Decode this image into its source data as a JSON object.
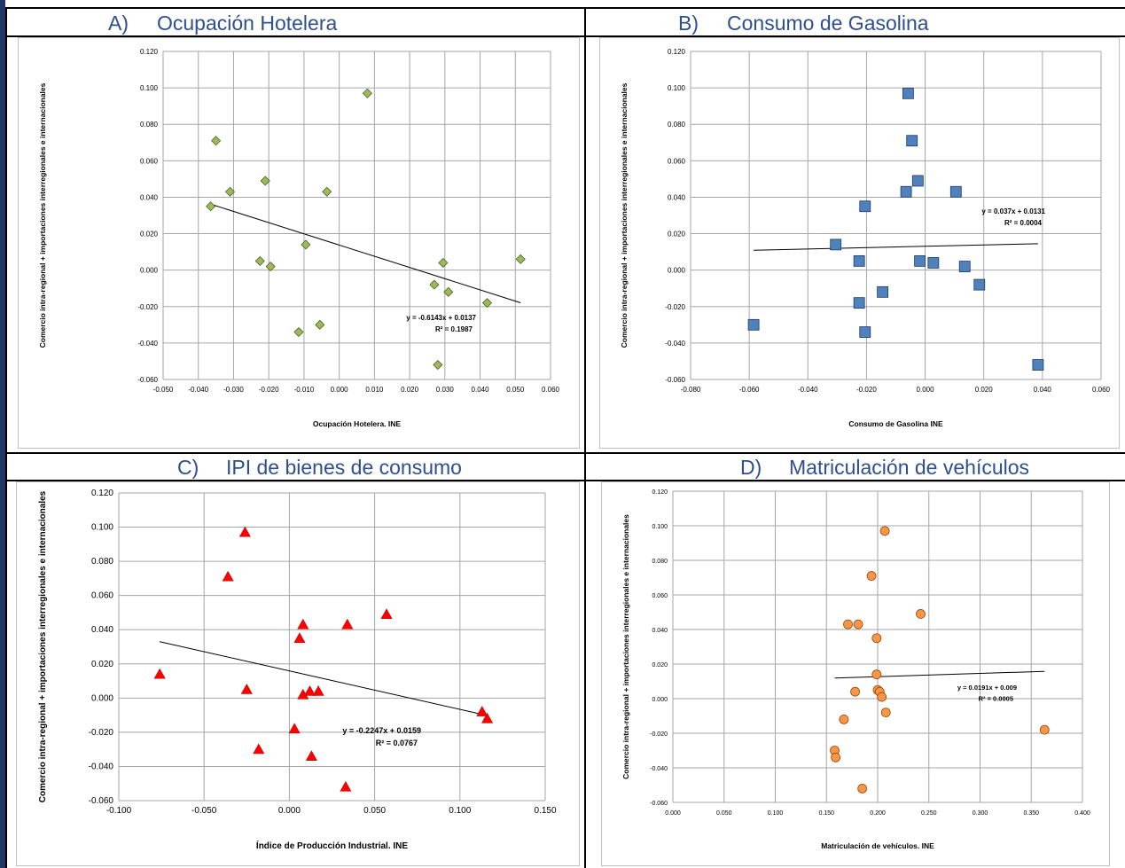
{
  "colors": {
    "title": "#2e4f8f",
    "gridline": "#a6a6a6",
    "trendline": "#000000",
    "left_bar": "#1f3864"
  },
  "panels": [
    {
      "letter": "A)",
      "title": "Ocupación Hotelera"
    },
    {
      "letter": "B)",
      "title": "Consumo de Gasolina"
    },
    {
      "letter": "C)",
      "title": "IPI de bienes de consumo"
    },
    {
      "letter": "D)",
      "title": "Matriculación de vehículos"
    }
  ],
  "chart_data": [
    {
      "type": "scatter",
      "xlabel": "Ocupación Hotelera. INE",
      "ylabel": "Comercio intra-regional + importaciones interregionales e internacionales",
      "xlim": [
        -0.05,
        0.06
      ],
      "ylim": [
        -0.06,
        0.12
      ],
      "x_ticks": [
        "-0.050",
        "-0.040",
        "-0.030",
        "-0.020",
        "-0.010",
        "0.000",
        "0.010",
        "0.020",
        "0.030",
        "0.040",
        "0.050",
        "0.060"
      ],
      "y_ticks": [
        "0.120",
        "0.100",
        "0.080",
        "0.060",
        "0.040",
        "0.020",
        "0.000",
        "-0.020",
        "-0.040",
        "-0.060"
      ],
      "grid": true,
      "marker": "diamond",
      "marker_fill": "#9bbb59",
      "marker_stroke": "#4f6228",
      "points": [
        [
          -0.035,
          0.071
        ],
        [
          -0.0365,
          0.035
        ],
        [
          -0.031,
          0.043
        ],
        [
          -0.021,
          0.049
        ],
        [
          -0.0225,
          0.005
        ],
        [
          -0.0195,
          0.002
        ],
        [
          -0.0095,
          0.014
        ],
        [
          -0.0035,
          0.043
        ],
        [
          0.008,
          0.097
        ],
        [
          -0.0115,
          -0.034
        ],
        [
          -0.0055,
          -0.03
        ],
        [
          0.027,
          -0.008
        ],
        [
          0.0295,
          0.004
        ],
        [
          0.031,
          -0.012
        ],
        [
          0.0515,
          0.006
        ],
        [
          0.042,
          -0.018
        ],
        [
          0.028,
          -0.052
        ]
      ],
      "trendline": {
        "x": [
          -0.0365,
          0.0515
        ],
        "y": [
          0.0362,
          -0.0179
        ]
      },
      "equation": "y = -0.6143x + 0.0137",
      "r2": "R² = 0.1987"
    },
    {
      "type": "scatter",
      "xlabel": "Consumo de Gasolina INE",
      "ylabel": "Comercio intra-regional + importaciones interregionales e internacionales",
      "xlim": [
        -0.08,
        0.06
      ],
      "ylim": [
        -0.06,
        0.12
      ],
      "x_ticks": [
        "-0.080",
        "-0.060",
        "-0.040",
        "-0.020",
        "0.000",
        "0.020",
        "0.040",
        "0.060"
      ],
      "y_ticks": [
        "0.120",
        "0.100",
        "0.080",
        "0.060",
        "0.040",
        "0.020",
        "0.000",
        "-0.020",
        "-0.040",
        "-0.060"
      ],
      "grid": true,
      "marker": "square",
      "marker_fill": "#4f81bd",
      "marker_stroke": "#1f3864",
      "points": [
        [
          -0.0058,
          0.097
        ],
        [
          -0.0045,
          0.071
        ],
        [
          -0.0025,
          0.049
        ],
        [
          -0.0065,
          0.043
        ],
        [
          0.0105,
          0.043
        ],
        [
          -0.0205,
          0.035
        ],
        [
          -0.0305,
          0.014
        ],
        [
          -0.0225,
          0.005
        ],
        [
          -0.0018,
          0.005
        ],
        [
          0.0028,
          0.004
        ],
        [
          0.0135,
          0.002
        ],
        [
          -0.0145,
          -0.012
        ],
        [
          0.0185,
          -0.008
        ],
        [
          -0.0225,
          -0.018
        ],
        [
          -0.0205,
          -0.034
        ],
        [
          -0.0585,
          -0.03
        ],
        [
          0.0385,
          -0.052
        ]
      ],
      "trendline": {
        "x": [
          -0.0585,
          0.0385
        ],
        "y": [
          0.0109,
          0.0145
        ]
      },
      "equation": "y = 0.037x + 0.0131",
      "r2": "R² = 0.0004"
    },
    {
      "type": "scatter",
      "xlabel": "Índice de Producción Industrial. INE",
      "ylabel": "Comercio intra-regional + importaciones interregionales e internacionales",
      "xlim": [
        -0.1,
        0.15
      ],
      "ylim": [
        -0.06,
        0.12
      ],
      "x_ticks": [
        "-0.100",
        "-0.050",
        "0.000",
        "0.050",
        "0.100",
        "0.150"
      ],
      "y_ticks": [
        "0.120",
        "0.100",
        "0.080",
        "0.060",
        "0.040",
        "0.020",
        "0.000",
        "-0.020",
        "-0.040",
        "-0.060"
      ],
      "grid": true,
      "marker": "triangle",
      "marker_fill": "#ff0000",
      "marker_stroke": "#c00000",
      "points": [
        [
          -0.026,
          0.097
        ],
        [
          -0.036,
          0.071
        ],
        [
          0.057,
          0.049
        ],
        [
          0.008,
          0.043
        ],
        [
          0.034,
          0.043
        ],
        [
          0.006,
          0.035
        ],
        [
          -0.076,
          0.014
        ],
        [
          -0.025,
          0.005
        ],
        [
          0.008,
          0.002
        ],
        [
          0.012,
          0.004
        ],
        [
          0.017,
          0.004
        ],
        [
          0.113,
          -0.008
        ],
        [
          0.116,
          -0.012
        ],
        [
          0.003,
          -0.018
        ],
        [
          -0.018,
          -0.03
        ],
        [
          0.013,
          -0.034
        ],
        [
          0.033,
          -0.052
        ]
      ],
      "trendline": {
        "x": [
          -0.076,
          0.116
        ],
        "y": [
          0.033,
          -0.0102
        ]
      },
      "equation": "y = -0.2247x + 0.0159",
      "r2": "R² = 0.0767"
    },
    {
      "type": "scatter",
      "xlabel": "Matriculación de vehículos. INE",
      "ylabel": "Comercio intra-regional + importaciones interregionales e internacionales",
      "xlim": [
        0.0,
        0.4
      ],
      "ylim": [
        -0.06,
        0.12
      ],
      "x_ticks": [
        "0.000",
        "0.050",
        "0.100",
        "0.150",
        "0.200",
        "0.250",
        "0.300",
        "0.350",
        "0.400"
      ],
      "y_ticks": [
        "0.120",
        "0.100",
        "0.080",
        "0.060",
        "0.040",
        "0.020",
        "0.000",
        "-0.020",
        "-0.040",
        "-0.060"
      ],
      "grid": true,
      "marker": "circle",
      "marker_fill": "#f79646",
      "marker_stroke": "#984807",
      "points": [
        [
          0.207,
          0.097
        ],
        [
          0.194,
          0.071
        ],
        [
          0.242,
          0.049
        ],
        [
          0.171,
          0.043
        ],
        [
          0.181,
          0.043
        ],
        [
          0.199,
          0.035
        ],
        [
          0.199,
          0.014
        ],
        [
          0.178,
          0.004
        ],
        [
          0.2,
          0.005
        ],
        [
          0.202,
          0.004
        ],
        [
          0.204,
          0.001
        ],
        [
          0.167,
          -0.012
        ],
        [
          0.208,
          -0.008
        ],
        [
          0.363,
          -0.018
        ],
        [
          0.158,
          -0.03
        ],
        [
          0.159,
          -0.034
        ],
        [
          0.185,
          -0.052
        ]
      ],
      "trendline": {
        "x": [
          0.158,
          0.363
        ],
        "y": [
          0.0119,
          0.0158
        ]
      },
      "equation": "y = 0.0191x + 0.009",
      "r2": "R² = 0.0005"
    }
  ]
}
